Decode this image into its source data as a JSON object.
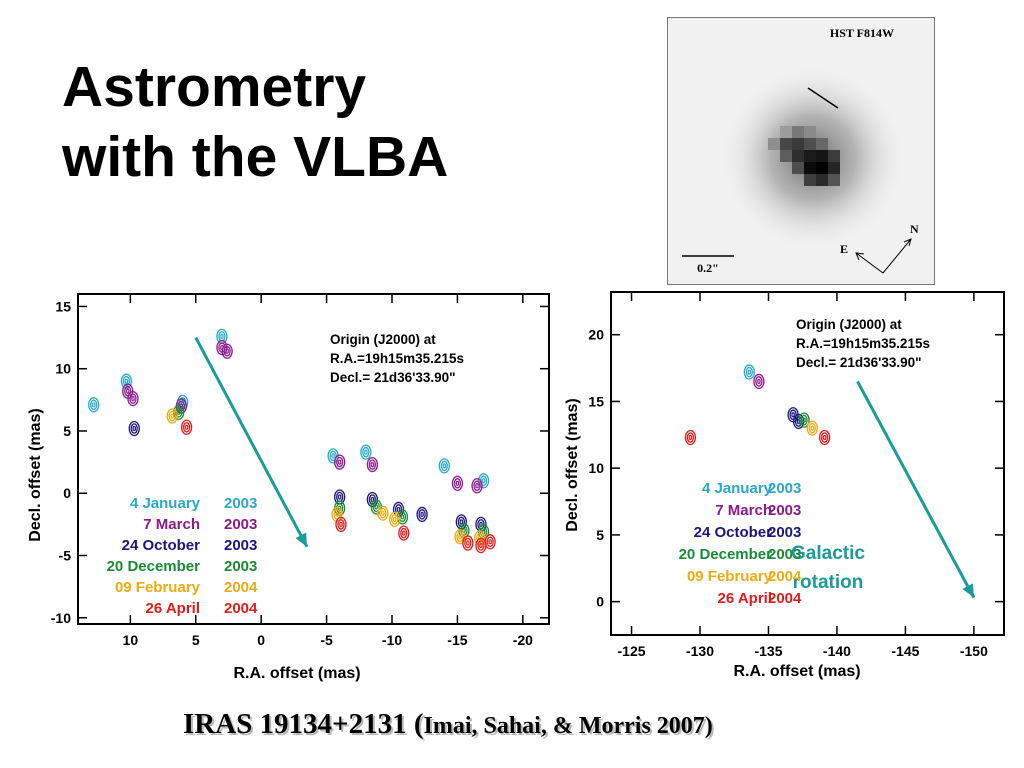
{
  "title_line1": "Astrometry",
  "title_line2": "with the VLBA",
  "hst": {
    "label": "HST F814W",
    "scale_label": "0.2\"",
    "north": "N",
    "east": "E"
  },
  "footer": {
    "object": "IRAS 19134+2131 (",
    "citation": "Imai, Sahai, & Morris 2007)"
  },
  "colors": {
    "jan2003": "#29a9c7",
    "mar2003": "#8b1a8c",
    "oct2003": "#1d1580",
    "dec2003": "#1a8a36",
    "feb2004": "#f0aa12",
    "apr2004": "#e21b1b",
    "arrow": "#1b9b9b"
  },
  "chart_data": [
    {
      "type": "scatter",
      "xlabel": "R.A. offset (mas)",
      "ylabel": "Decl. offset (mas)",
      "xlim": [
        14,
        -22
      ],
      "ylim": [
        -10.5,
        16
      ],
      "xticks": [
        10,
        5,
        0,
        -5,
        -10,
        -15,
        -20
      ],
      "yticks": [
        15,
        10,
        5,
        0,
        -5,
        -10
      ],
      "origin_text": [
        "Origin (J2000) at",
        "R.A.=19h15m35.215s",
        "Decl.= 21d36'33.90\""
      ],
      "legend": [
        {
          "epoch": "4 January",
          "year": "2003",
          "color": "#29a9c7"
        },
        {
          "epoch": "7 March",
          "year": "2003",
          "color": "#8b1a8c"
        },
        {
          "epoch": "24 October",
          "year": "2003",
          "color": "#1d1580"
        },
        {
          "epoch": "20 December",
          "year": "2003",
          "color": "#1a8a36"
        },
        {
          "epoch": "09 February",
          "year": "2004",
          "color": "#f0aa12"
        },
        {
          "epoch": "26 April",
          "year": "2004",
          "color": "#e21b1b"
        }
      ],
      "arrow": {
        "from": [
          5,
          12.5
        ],
        "to": [
          -3.5,
          -4.3
        ]
      },
      "series": [
        {
          "epoch": "4 January 2003",
          "points": [
            [
              12.8,
              7.1
            ],
            [
              10.3,
              9.0
            ],
            [
              6.0,
              7.3
            ],
            [
              3.0,
              12.6
            ],
            [
              -5.5,
              3.0
            ],
            [
              -8.0,
              3.3
            ],
            [
              -14.0,
              2.2
            ],
            [
              -17.0,
              1.0
            ]
          ]
        },
        {
          "epoch": "7 March 2003",
          "points": [
            [
              10.2,
              8.2
            ],
            [
              9.8,
              7.6
            ],
            [
              6.1,
              7.0
            ],
            [
              3.0,
              11.7
            ],
            [
              2.6,
              11.4
            ],
            [
              -6.0,
              2.5
            ],
            [
              -8.5,
              2.3
            ],
            [
              -15.0,
              0.8
            ],
            [
              -16.5,
              0.6
            ]
          ]
        },
        {
          "epoch": "24 October 2003",
          "points": [
            [
              9.7,
              5.2
            ],
            [
              -6.0,
              -0.3
            ],
            [
              -8.5,
              -0.5
            ],
            [
              -10.5,
              -1.3
            ],
            [
              -12.3,
              -1.7
            ],
            [
              -15.3,
              -2.3
            ],
            [
              -16.8,
              -2.5
            ]
          ]
        },
        {
          "epoch": "20 December 2003",
          "points": [
            [
              6.3,
              6.5
            ],
            [
              -6.0,
              -1.2
            ],
            [
              -8.8,
              -1.1
            ],
            [
              -10.8,
              -1.9
            ],
            [
              -15.5,
              -3.0
            ],
            [
              -17.0,
              -3.1
            ]
          ]
        },
        {
          "epoch": "09 February 2004",
          "points": [
            [
              6.8,
              6.2
            ],
            [
              -5.8,
              -1.7
            ],
            [
              -9.3,
              -1.6
            ],
            [
              -10.2,
              -2.1
            ],
            [
              -15.2,
              -3.5
            ],
            [
              -16.7,
              -3.6
            ]
          ]
        },
        {
          "epoch": "26 April 2004",
          "points": [
            [
              5.7,
              5.3
            ],
            [
              -6.1,
              -2.5
            ],
            [
              -10.9,
              -3.2
            ],
            [
              -15.8,
              -4.0
            ],
            [
              -16.8,
              -4.2
            ],
            [
              -17.5,
              -3.9
            ]
          ]
        }
      ]
    },
    {
      "type": "scatter",
      "xlabel": "R.A. offset (mas)",
      "ylabel": "Decl. offset (mas)",
      "xlim": [
        -123.5,
        -152.2
      ],
      "ylim": [
        -2.5,
        23.2
      ],
      "xticks": [
        -125,
        -130,
        -135,
        -140,
        -145,
        -150
      ],
      "yticks": [
        20,
        15,
        10,
        5,
        0
      ],
      "origin_text": [
        "Origin (J2000) at",
        "R.A.=19h15m35.215s",
        "Decl.= 21d36'33.90\""
      ],
      "annotation": [
        "Galactic",
        "rotation"
      ],
      "legend": [
        {
          "epoch": "4 January",
          "year": "2003",
          "color": "#29a9c7"
        },
        {
          "epoch": "7 March",
          "year": "2003",
          "color": "#8b1a8c"
        },
        {
          "epoch": "24 October",
          "year": "2003",
          "color": "#1d1580"
        },
        {
          "epoch": "20 December",
          "year": "2003",
          "color": "#1a8a36"
        },
        {
          "epoch": "09 February",
          "year": "2004",
          "color": "#f0aa12"
        },
        {
          "epoch": "26 April",
          "year": "2004",
          "color": "#e21b1b"
        }
      ],
      "arrow": {
        "from": [
          -141.5,
          16.5
        ],
        "to": [
          -150,
          0.3
        ]
      },
      "series": [
        {
          "epoch": "4 January 2003",
          "points": [
            [
              -133.6,
              17.2
            ]
          ]
        },
        {
          "epoch": "7 March 2003",
          "points": [
            [
              -134.3,
              16.5
            ]
          ]
        },
        {
          "epoch": "24 October 2003",
          "points": [
            [
              -136.8,
              14.0
            ],
            [
              -137.2,
              13.5
            ]
          ]
        },
        {
          "epoch": "20 December 2003",
          "points": [
            [
              -137.6,
              13.6
            ]
          ]
        },
        {
          "epoch": "09 February 2004",
          "points": [
            [
              -138.2,
              13.0
            ]
          ]
        },
        {
          "epoch": "26 April 2004",
          "points": [
            [
              -129.3,
              12.3
            ],
            [
              -139.1,
              12.3
            ]
          ]
        }
      ]
    }
  ]
}
